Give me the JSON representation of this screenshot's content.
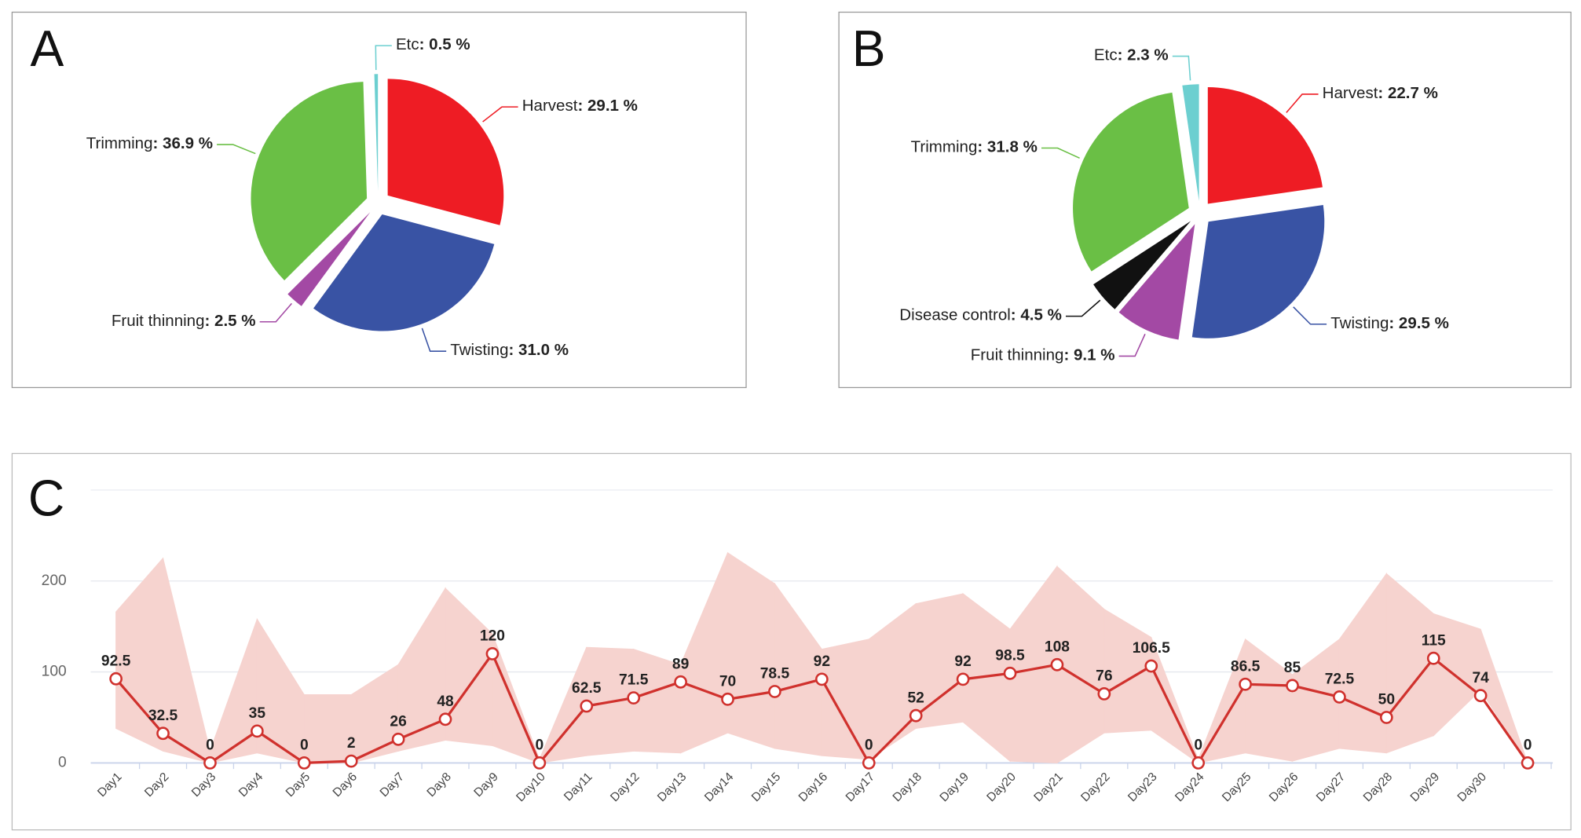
{
  "chart_data": [
    {
      "type": "pie",
      "panel": "A",
      "categories": [
        "Harvest",
        "Twisting",
        "Fruit thinning",
        "Trimming",
        "Etc"
      ],
      "values": [
        29.1,
        31.0,
        2.5,
        36.9,
        0.5
      ],
      "value_labels": [
        ": 29.1 %",
        ": 31.0 %",
        ": 2.5 %",
        ": 36.9 %",
        ": 0.5 %"
      ],
      "colors": [
        "#ee1c24",
        "#3953a4",
        "#a349a4",
        "#6abf45",
        "#6ccfd0"
      ]
    },
    {
      "type": "pie",
      "panel": "B",
      "categories": [
        "Harvest",
        "Twisting",
        "Fruit thinning",
        "Disease control",
        "Trimming",
        "Etc"
      ],
      "values": [
        22.7,
        29.5,
        9.1,
        4.5,
        31.8,
        2.3
      ],
      "value_labels": [
        ": 22.7 %",
        ": 29.5 %",
        ": 9.1 %",
        ": 4.5 %",
        ": 31.8 %",
        ": 2.3 %"
      ],
      "colors": [
        "#ee1c24",
        "#3953a4",
        "#a349a4",
        "#111111",
        "#6abf45",
        "#6ccfd0"
      ]
    },
    {
      "type": "line",
      "panel": "C",
      "categories": [
        "Day1",
        "Day2",
        "Day3",
        "Day4",
        "Day5",
        "Day6",
        "Day7",
        "Day8",
        "Day9",
        "Day10",
        "Day11",
        "Day12",
        "Day13",
        "Day14",
        "Day15",
        "Day16",
        "Day17",
        "Day18",
        "Day19",
        "Day20",
        "Day21",
        "Day22",
        "Day23",
        "Day24",
        "Day25",
        "Day26",
        "Day27",
        "Day28",
        "Day29",
        "Day30",
        null
      ],
      "values": [
        92.5,
        32.5,
        0,
        35,
        0,
        2,
        26,
        48,
        120,
        0,
        62.5,
        71.5,
        89,
        70,
        78.5,
        92,
        0,
        52,
        92,
        98.5,
        108,
        76,
        106.5,
        0,
        86.5,
        85,
        72.5,
        50,
        115,
        74,
        0
      ],
      "color": "#d0312d",
      "range": {
        "color": "#f6d3cf",
        "upper": [
          166,
          225,
          13,
          158,
          75,
          75,
          108,
          192,
          142,
          4,
          127,
          125,
          108,
          231,
          197,
          125,
          136,
          175,
          186,
          147,
          216,
          169,
          138,
          4,
          136,
          97,
          136,
          208,
          164,
          147,
          0
        ],
        "lower": [
          38,
          13,
          0,
          11,
          0,
          0,
          13,
          25,
          19,
          0,
          8,
          13,
          11,
          33,
          16,
          8,
          4,
          38,
          45,
          2,
          0,
          33,
          36,
          0,
          11,
          2,
          16,
          11,
          30,
          80,
          0
        ]
      },
      "ylim": [
        0,
        300
      ],
      "yticks": [
        0,
        100,
        200
      ],
      "grid": true
    }
  ]
}
